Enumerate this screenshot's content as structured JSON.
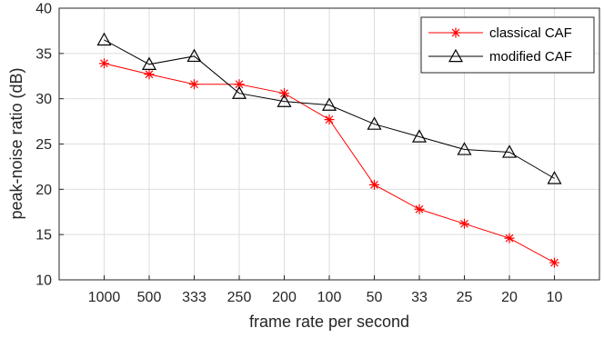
{
  "chart_data": {
    "type": "line",
    "xlabel": "frame rate per second",
    "ylabel": "peak-noise ratio (dB)",
    "categories": [
      "1000",
      "500",
      "333",
      "250",
      "200",
      "100",
      "50",
      "33",
      "25",
      "20",
      "10"
    ],
    "ylim": [
      10,
      40
    ],
    "yticks": [
      10,
      15,
      20,
      25,
      30,
      35,
      40
    ],
    "grid": true,
    "legend_position": "top-right",
    "series": [
      {
        "name": "classical CAF",
        "color": "#ff0000",
        "marker": "asterisk",
        "values": [
          33.9,
          32.7,
          31.6,
          31.6,
          30.6,
          27.7,
          20.5,
          17.8,
          16.2,
          14.6,
          11.9
        ]
      },
      {
        "name": "modified CAF",
        "color": "#000000",
        "marker": "triangle",
        "values": [
          36.5,
          33.8,
          34.7,
          30.6,
          29.7,
          29.3,
          27.2,
          25.8,
          24.4,
          24.1,
          21.2
        ]
      }
    ]
  }
}
